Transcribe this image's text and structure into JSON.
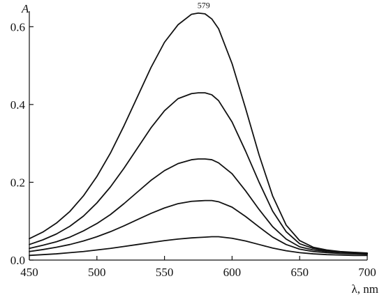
{
  "chart_data": {
    "type": "line",
    "title": "",
    "xlabel": "λ, nm",
    "ylabel": "A",
    "xlim": [
      450,
      700
    ],
    "ylim": [
      0,
      0.64
    ],
    "x_ticks": [
      450,
      500,
      550,
      600,
      650,
      700
    ],
    "y_ticks": [
      0,
      0.2,
      0.4,
      0.6
    ],
    "x_tick_labels": [
      "450",
      "500",
      "550",
      "600",
      "650",
      "700"
    ],
    "y_tick_labels": [
      "0.0",
      "0.2",
      "0.4",
      "0.6"
    ],
    "annotations": [
      {
        "text": "579",
        "x": 579,
        "y": 0.632
      }
    ],
    "grid": false,
    "legend": "none",
    "series": [
      {
        "x": [
          450,
          460,
          470,
          480,
          490,
          500,
          510,
          520,
          530,
          540,
          550,
          560,
          570,
          575,
          580,
          585,
          590,
          600,
          610,
          620,
          630,
          640,
          650,
          660,
          670,
          680,
          690,
          700
        ],
        "values": [
          0.055,
          0.072,
          0.095,
          0.125,
          0.165,
          0.215,
          0.275,
          0.345,
          0.42,
          0.495,
          0.56,
          0.605,
          0.632,
          0.635,
          0.633,
          0.62,
          0.595,
          0.505,
          0.39,
          0.27,
          0.165,
          0.09,
          0.05,
          0.033,
          0.026,
          0.022,
          0.02,
          0.018
        ]
      },
      {
        "x": [
          450,
          460,
          470,
          480,
          490,
          500,
          510,
          520,
          530,
          540,
          550,
          560,
          570,
          575,
          580,
          585,
          590,
          600,
          610,
          620,
          630,
          640,
          650,
          660,
          670,
          680,
          690,
          700
        ],
        "values": [
          0.04,
          0.052,
          0.067,
          0.087,
          0.113,
          0.147,
          0.188,
          0.236,
          0.288,
          0.34,
          0.384,
          0.415,
          0.428,
          0.43,
          0.43,
          0.425,
          0.41,
          0.355,
          0.28,
          0.2,
          0.126,
          0.073,
          0.042,
          0.03,
          0.024,
          0.021,
          0.019,
          0.017
        ]
      },
      {
        "x": [
          450,
          460,
          470,
          480,
          490,
          500,
          510,
          520,
          530,
          540,
          550,
          560,
          570,
          575,
          580,
          585,
          590,
          600,
          610,
          620,
          630,
          640,
          650,
          660,
          670,
          680,
          690,
          700
        ],
        "values": [
          0.03,
          0.038,
          0.047,
          0.059,
          0.075,
          0.094,
          0.117,
          0.145,
          0.175,
          0.205,
          0.23,
          0.248,
          0.258,
          0.26,
          0.26,
          0.258,
          0.25,
          0.222,
          0.178,
          0.13,
          0.086,
          0.054,
          0.034,
          0.026,
          0.022,
          0.02,
          0.018,
          0.016
        ]
      },
      {
        "x": [
          450,
          460,
          470,
          480,
          490,
          500,
          510,
          520,
          530,
          540,
          550,
          560,
          570,
          575,
          580,
          585,
          590,
          600,
          610,
          620,
          630,
          640,
          650,
          660,
          670,
          680,
          690,
          700
        ],
        "values": [
          0.022,
          0.027,
          0.033,
          0.04,
          0.049,
          0.06,
          0.073,
          0.088,
          0.104,
          0.12,
          0.134,
          0.145,
          0.151,
          0.152,
          0.153,
          0.153,
          0.15,
          0.136,
          0.112,
          0.085,
          0.059,
          0.04,
          0.028,
          0.022,
          0.019,
          0.017,
          0.016,
          0.015
        ]
      },
      {
        "x": [
          450,
          460,
          470,
          480,
          490,
          500,
          510,
          520,
          530,
          540,
          550,
          560,
          570,
          575,
          580,
          585,
          590,
          600,
          610,
          620,
          630,
          640,
          650,
          660,
          670,
          680,
          690,
          700
        ],
        "values": [
          0.012,
          0.014,
          0.016,
          0.019,
          0.022,
          0.026,
          0.03,
          0.035,
          0.04,
          0.045,
          0.05,
          0.054,
          0.057,
          0.058,
          0.059,
          0.06,
          0.06,
          0.056,
          0.049,
          0.04,
          0.031,
          0.024,
          0.019,
          0.016,
          0.014,
          0.013,
          0.012,
          0.012
        ]
      }
    ]
  }
}
